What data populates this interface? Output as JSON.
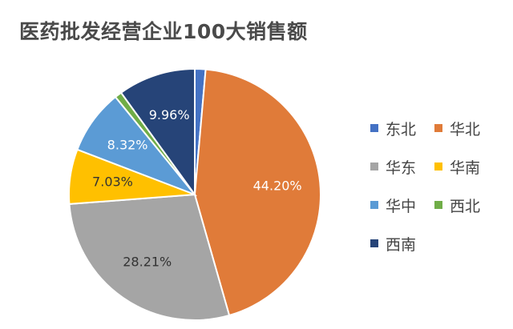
{
  "chart_data": {
    "type": "pie",
    "title": "医药批发经营企业100大销售额",
    "legend_position": "right",
    "slices": [
      {
        "name": "东北",
        "value": 1.38,
        "label": "",
        "color": "#4472C4",
        "label_color": "#ffffff"
      },
      {
        "name": "华北",
        "value": 44.2,
        "label": "44.20%",
        "color": "#E07B39",
        "label_color": "#ffffff"
      },
      {
        "name": "华东",
        "value": 28.21,
        "label": "28.21%",
        "color": "#A5A5A5",
        "label_color": "#333333"
      },
      {
        "name": "华南",
        "value": 7.03,
        "label": "7.03%",
        "color": "#FFC000",
        "label_color": "#333333"
      },
      {
        "name": "华中",
        "value": 8.32,
        "label": "8.32%",
        "color": "#5B9BD5",
        "label_color": "#ffffff"
      },
      {
        "name": "西北",
        "value": 0.9,
        "label": "",
        "color": "#70AD47",
        "label_color": "#ffffff"
      },
      {
        "name": "西南",
        "value": 9.96,
        "label": "9.96%",
        "color": "#264478",
        "label_color": "#ffffff"
      }
    ]
  }
}
